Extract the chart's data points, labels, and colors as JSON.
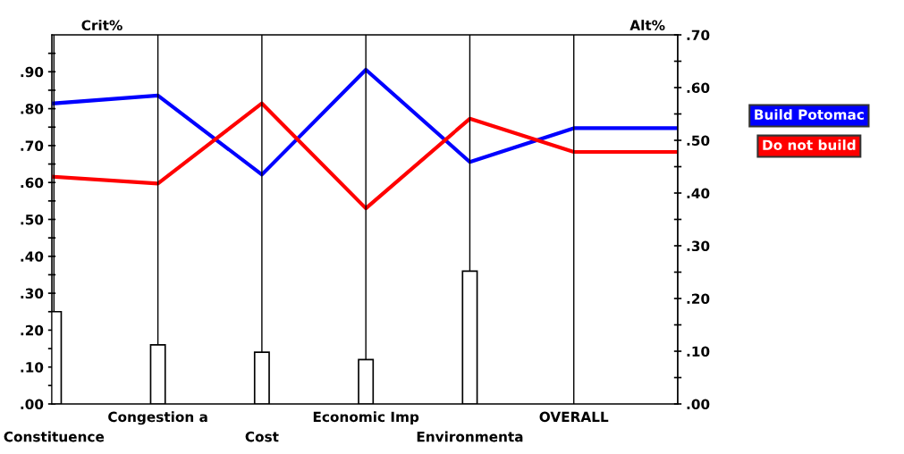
{
  "chart_data": {
    "type": "bar",
    "categories": [
      "Constituence",
      "Congestion a",
      "Cost",
      "Economic Imp",
      "Environmenta",
      "OVERALL",
      null
    ],
    "ylabel": "Crit%",
    "y2label": "Alt%",
    "ylim": [
      0,
      1.0
    ],
    "yticks": [
      {
        "value": 0,
        "label": ".00"
      },
      {
        "value": 0.05,
        "label": null
      },
      {
        "value": 0.1,
        "label": ".10"
      },
      {
        "value": 0.15,
        "label": null
      },
      {
        "value": 0.2,
        "label": ".20"
      },
      {
        "value": 0.25,
        "label": null
      },
      {
        "value": 0.3,
        "label": ".30"
      },
      {
        "value": 0.35,
        "label": null
      },
      {
        "value": 0.4,
        "label": ".40"
      },
      {
        "value": 0.45,
        "label": null
      },
      {
        "value": 0.5,
        "label": ".50"
      },
      {
        "value": 0.55,
        "label": null
      },
      {
        "value": 0.6,
        "label": ".60"
      },
      {
        "value": 0.65,
        "label": null
      },
      {
        "value": 0.7,
        "label": ".70"
      },
      {
        "value": 0.75,
        "label": null
      },
      {
        "value": 0.8,
        "label": ".80"
      },
      {
        "value": 0.85,
        "label": null
      },
      {
        "value": 0.9,
        "label": ".90"
      },
      {
        "value": 0.95,
        "label": null
      }
    ],
    "y2lim": [
      0,
      0.7
    ],
    "y2ticks": [
      {
        "value": 0,
        "label": ".00"
      },
      {
        "value": 0.05,
        "label": null
      },
      {
        "value": 0.1,
        "label": ".10"
      },
      {
        "value": 0.15,
        "label": null
      },
      {
        "value": 0.2,
        "label": ".20"
      },
      {
        "value": 0.25,
        "label": null
      },
      {
        "value": 0.3,
        "label": ".30"
      },
      {
        "value": 0.35,
        "label": null
      },
      {
        "value": 0.4,
        "label": ".40"
      },
      {
        "value": 0.45,
        "label": null
      },
      {
        "value": 0.5,
        "label": ".50"
      },
      {
        "value": 0.55,
        "label": null
      },
      {
        "value": 0.6,
        "label": ".60"
      },
      {
        "value": 0.65,
        "label": null
      },
      {
        "value": 0.7,
        "label": ".70"
      }
    ],
    "grid": "x",
    "legend": "right",
    "series": [
      {
        "color": "#ffffff",
        "values": [
          0.25,
          0.16,
          0.14,
          0.12,
          0.36,
          null,
          null
        ]
      },
      {
        "type": "line",
        "axis": "y2",
        "name": "Build Potomac",
        "color": "#0000ff",
        "values": [
          0.57,
          0.585,
          0.435,
          0.634,
          0.459,
          0.523,
          0.523
        ]
      },
      {
        "type": "line",
        "axis": "y2",
        "name": "Do not build",
        "color": "#ff0000",
        "values": [
          0.431,
          0.418,
          0.57,
          0.371,
          0.541,
          0.478,
          0.478
        ]
      }
    ]
  }
}
